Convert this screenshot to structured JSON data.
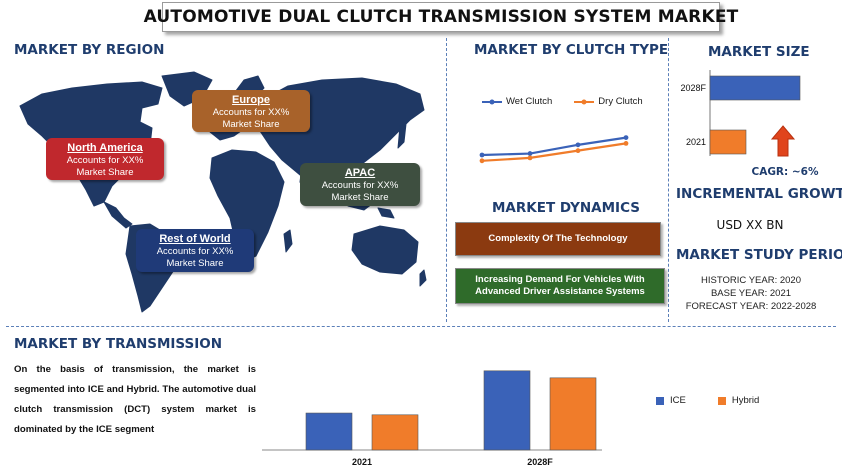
{
  "title": "AUTOMOTIVE DUAL CLUTCH TRANSMISSION SYSTEM MARKET",
  "region_section": {
    "heading": "MARKET BY REGION",
    "regions": [
      {
        "name": "North America",
        "line1": "Accounts for XX%",
        "line2": "Market Share",
        "color": "#c0282d"
      },
      {
        "name": "Europe",
        "line1": "Accounts for XX%",
        "line2": "Market Share",
        "color": "#a8622a"
      },
      {
        "name": "APAC",
        "line1": "Accounts for XX%",
        "line2": "Market Share",
        "color": "#3e4f40"
      },
      {
        "name": "Rest of World",
        "line1": "Accounts for XX%",
        "line2": "Market Share",
        "color": "#1f3a78"
      }
    ]
  },
  "clutch_section": {
    "heading": "MARKET BY CLUTCH TYPE"
  },
  "dynamics_section": {
    "heading": "MARKET DYNAMICS",
    "items": [
      {
        "label": "Complexity Of The Technology",
        "color": "#8b3a10"
      },
      {
        "label": "Increasing Demand For Vehicles With Advanced Driver Assistance Systems",
        "color": "#2f6b2a"
      }
    ]
  },
  "size_section": {
    "heading": "MARKET SIZE",
    "cagr": "CAGR:  ~6%",
    "incremental_heading": "INCREMENTAL GROWTH",
    "incremental_value": "USD XX BN"
  },
  "study_section": {
    "heading": "MARKET STUDY PERIOD",
    "historic": "HISTORIC YEAR: 2020",
    "base": "BASE YEAR: 2021",
    "forecast": "FORECAST YEAR: 2022-2028"
  },
  "transmission_section": {
    "heading": "MARKET BY TRANSMISSION",
    "description": "On the basis of transmission, the market is segmented into ICE and Hybrid. The automotive dual clutch transmission (DCT) system market is dominated by the ICE segment"
  },
  "colors": {
    "blue": "#3a62b8",
    "orange": "#f07c2a",
    "heading": "#1f3d6e"
  },
  "chart_data": [
    {
      "type": "line",
      "series": [
        {
          "name": "Wet Clutch",
          "values": [
            2.0,
            2.1,
            2.7,
            3.2
          ],
          "color": "#3a62b8"
        },
        {
          "name": "Dry Clutch",
          "values": [
            1.6,
            1.8,
            2.3,
            2.8
          ],
          "color": "#f07c2a"
        }
      ],
      "ylim": [
        0,
        4
      ],
      "legend": "top"
    },
    {
      "type": "bar",
      "orientation": "horizontal",
      "categories": [
        "2028F",
        "2021"
      ],
      "values": [
        100,
        40
      ],
      "colors": [
        "#3a62b8",
        "#f07c2a"
      ]
    },
    {
      "type": "bar",
      "categories": [
        "2021",
        "2028F"
      ],
      "series": [
        {
          "name": "ICE",
          "values": [
            42,
            90
          ],
          "color": "#3a62b8"
        },
        {
          "name": "Hybrid",
          "values": [
            40,
            82
          ],
          "color": "#f07c2a"
        }
      ],
      "ylim": [
        0,
        100
      ],
      "legend": "right"
    }
  ]
}
